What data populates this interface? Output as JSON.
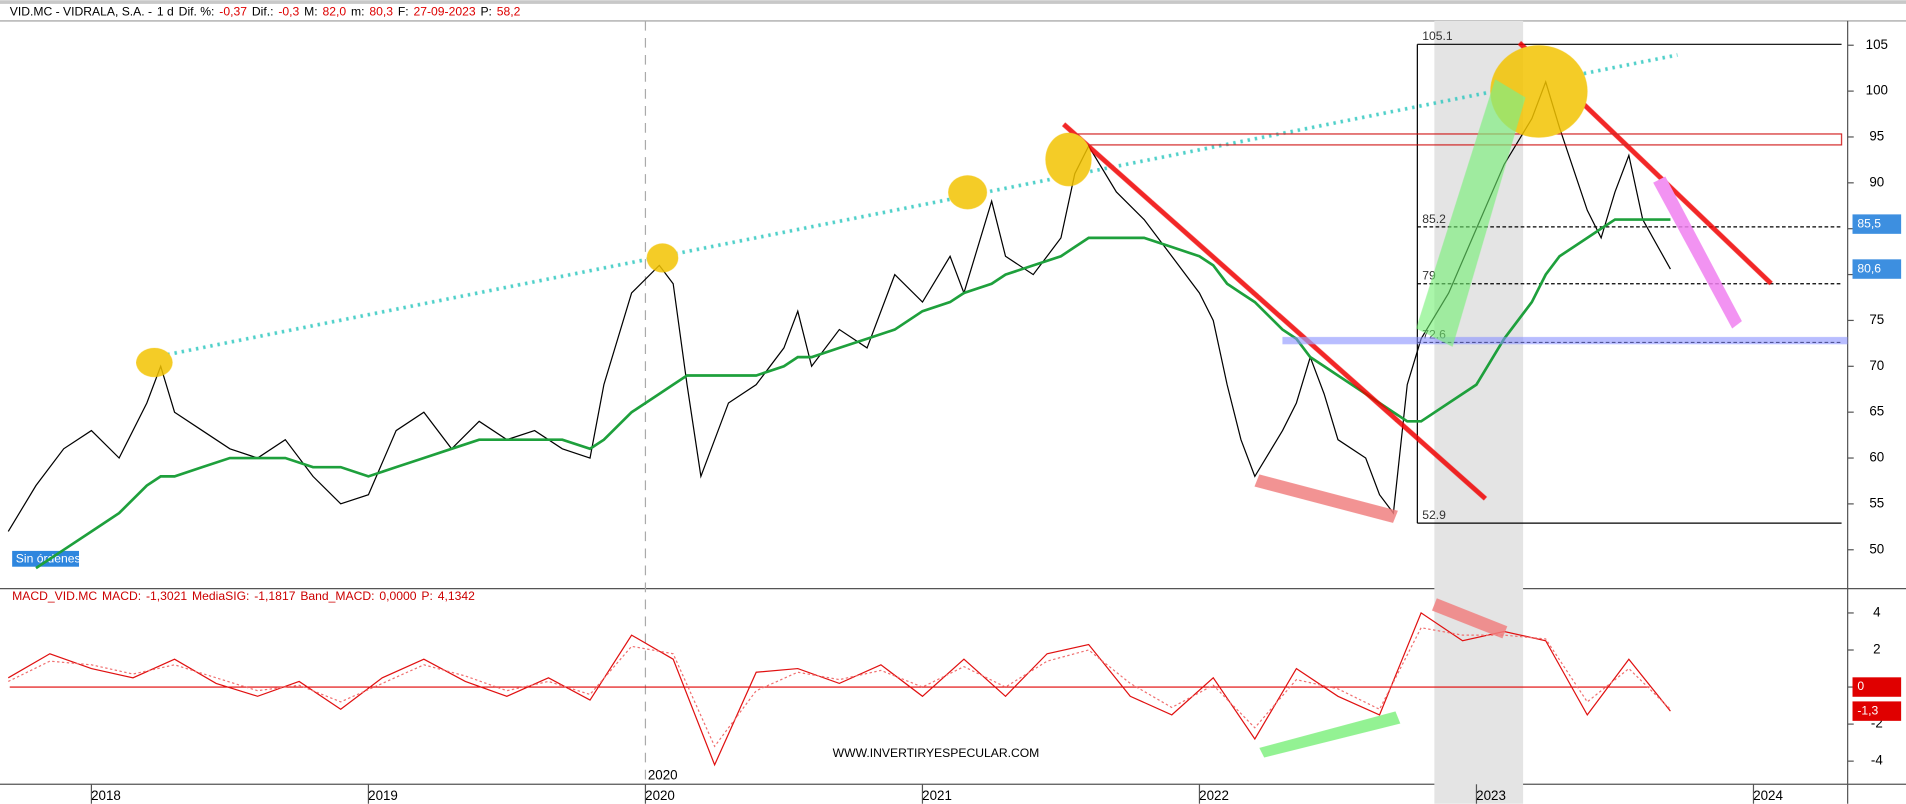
{
  "header": {
    "symbol": "VID.MC - VIDRALA, S.A. -",
    "interval": "1 d",
    "fields": [
      {
        "name": "Dif. %:",
        "value": "-0,37"
      },
      {
        "name": "Dif.:",
        "value": "-0,3"
      },
      {
        "name": "M:",
        "value": "82,0"
      },
      {
        "name": "m:",
        "value": "80,3"
      },
      {
        "name": "F:",
        "value": "27-09-2023"
      },
      {
        "name": "P:",
        "value": "58,2"
      }
    ]
  },
  "chart_data": [
    {
      "type": "line",
      "x": [
        2017.7,
        2017.8,
        2017.9,
        2018.0,
        2018.1,
        2018.2,
        2018.25,
        2018.3,
        2018.4,
        2018.5,
        2018.6,
        2018.7,
        2018.8,
        2018.9,
        2019.0,
        2019.1,
        2019.2,
        2019.3,
        2019.4,
        2019.5,
        2019.6,
        2019.7,
        2019.8,
        2019.85,
        2019.95,
        2020.05,
        2020.1,
        2020.15,
        2020.2,
        2020.3,
        2020.4,
        2020.5,
        2020.55,
        2020.6,
        2020.7,
        2020.8,
        2020.9,
        2021.0,
        2021.1,
        2021.15,
        2021.25,
        2021.3,
        2021.4,
        2021.5,
        2021.55,
        2021.6,
        2021.7,
        2021.8,
        2021.9,
        2022.0,
        2022.05,
        2022.1,
        2022.15,
        2022.2,
        2022.3,
        2022.35,
        2022.4,
        2022.45,
        2022.5,
        2022.6,
        2022.65,
        2022.7,
        2022.75,
        2022.8,
        2022.9,
        2023.0,
        2023.1,
        2023.2,
        2023.25,
        2023.3,
        2023.4,
        2023.45,
        2023.5,
        2023.55,
        2023.6,
        2023.7
      ],
      "series": [
        {
          "color": "#000000",
          "values": [
            52,
            57,
            61,
            63,
            60,
            66,
            70,
            65,
            63,
            61,
            60,
            62,
            58,
            55,
            56,
            63,
            65,
            61,
            64,
            62,
            63,
            61,
            60,
            68,
            78,
            81,
            79,
            68,
            58,
            66,
            68,
            72,
            76,
            70,
            74,
            72,
            80,
            77,
            82,
            78,
            88,
            82,
            80,
            84,
            91,
            94,
            89,
            86,
            82,
            78,
            75,
            68,
            62,
            58,
            63,
            66,
            71,
            67,
            62,
            60,
            56,
            54,
            68,
            73,
            78,
            85,
            92,
            97,
            101,
            96,
            87,
            84,
            89,
            93,
            86,
            80.6
          ]
        },
        {
          "color": "#1ea03c",
          "values": [
            null,
            48,
            50,
            52,
            54,
            57,
            58,
            58,
            59,
            60,
            60,
            60,
            59,
            59,
            58,
            59,
            60,
            61,
            62,
            62,
            62,
            62,
            61,
            62,
            65,
            67,
            68,
            69,
            69,
            69,
            69,
            70,
            71,
            71,
            72,
            73,
            74,
            76,
            77,
            78,
            79,
            80,
            81,
            82,
            83,
            84,
            84,
            84,
            83,
            82,
            81,
            79,
            78,
            77,
            74,
            73,
            71,
            70,
            69,
            67,
            66,
            65,
            64,
            64,
            66,
            68,
            73,
            77,
            80,
            82,
            84,
            85,
            86,
            86,
            86,
            86
          ]
        }
      ],
      "xlim": [
        2017.67,
        2024.34
      ],
      "ylim": [
        45.9,
        107.65
      ],
      "xticks": [
        2018,
        2019,
        2020,
        2021,
        2022,
        2023,
        2024
      ],
      "yticks": [
        50,
        55,
        60,
        65,
        70,
        75,
        80,
        85,
        90,
        95,
        100,
        105
      ],
      "marker_x": 2020,
      "levels": [
        105.1,
        85.2,
        79.0,
        72.6,
        52.9
      ],
      "price_tags": [
        {
          "value": 85.5,
          "label": "85,5"
        },
        {
          "value": 80.6,
          "label": "80,6"
        }
      ],
      "status": "Sin órdenes",
      "watermark": "WWW.INVERTIRYESPECULAR.COM"
    },
    {
      "type": "line",
      "title_fields": [
        {
          "name": "MACD_VID.MC",
          "value": ""
        }
      ],
      "x": [
        2017.7,
        2017.85,
        2018.0,
        2018.15,
        2018.3,
        2018.45,
        2018.6,
        2018.75,
        2018.9,
        2019.05,
        2019.2,
        2019.35,
        2019.5,
        2019.65,
        2019.8,
        2019.95,
        2020.1,
        2020.25,
        2020.4,
        2020.55,
        2020.7,
        2020.85,
        2021.0,
        2021.15,
        2021.3,
        2021.45,
        2021.6,
        2021.75,
        2021.9,
        2022.05,
        2022.2,
        2022.35,
        2022.5,
        2022.65,
        2022.8,
        2022.95,
        2023.1,
        2023.25,
        2023.4,
        2023.55,
        2023.7
      ],
      "series": [
        {
          "color": "#e01010",
          "values": [
            0.5,
            1.8,
            1.0,
            0.5,
            1.5,
            0.2,
            -0.5,
            0.3,
            -1.2,
            0.5,
            1.5,
            0.3,
            -0.5,
            0.5,
            -0.7,
            2.8,
            1.5,
            -4.2,
            0.8,
            1.0,
            0.2,
            1.2,
            -0.5,
            1.5,
            -0.5,
            1.8,
            2.3,
            -0.5,
            -1.5,
            0.5,
            -2.8,
            1.0,
            -0.5,
            -1.5,
            4.0,
            2.5,
            3.0,
            2.5,
            -1.5,
            1.5,
            -1.3
          ]
        },
        {
          "color": "#f07070",
          "values": [
            0.3,
            1.4,
            1.2,
            0.7,
            1.2,
            0.5,
            -0.2,
            0.1,
            -0.8,
            0.2,
            1.2,
            0.6,
            -0.2,
            0.3,
            -0.4,
            2.2,
            1.8,
            -3.2,
            -0.2,
            0.8,
            0.4,
            0.9,
            0,
            1.1,
            0,
            1.4,
            2.0,
            0.2,
            -1.1,
            0.1,
            -2.2,
            0.4,
            -0.1,
            -1.2,
            3.2,
            2.8,
            2.8,
            2.6,
            -0.8,
            1.0,
            -1.2
          ]
        }
      ],
      "header": [
        {
          "name": "MACD:",
          "value": "-1,3021"
        },
        {
          "name": "MediaSIG:",
          "value": "-1,1817"
        },
        {
          "name": "Band_MACD:",
          "value": "0,0000"
        },
        {
          "name": "P:",
          "value": "4,1342"
        }
      ],
      "indicator": "MACD_VID.MC",
      "ylim": [
        -5.25,
        5.25
      ],
      "yticks": [
        -4,
        -2,
        0,
        2,
        4
      ],
      "price_tags": [
        {
          "value": 0,
          "label": "0"
        },
        {
          "value": -1.3,
          "label": "-1,3"
        }
      ]
    }
  ]
}
